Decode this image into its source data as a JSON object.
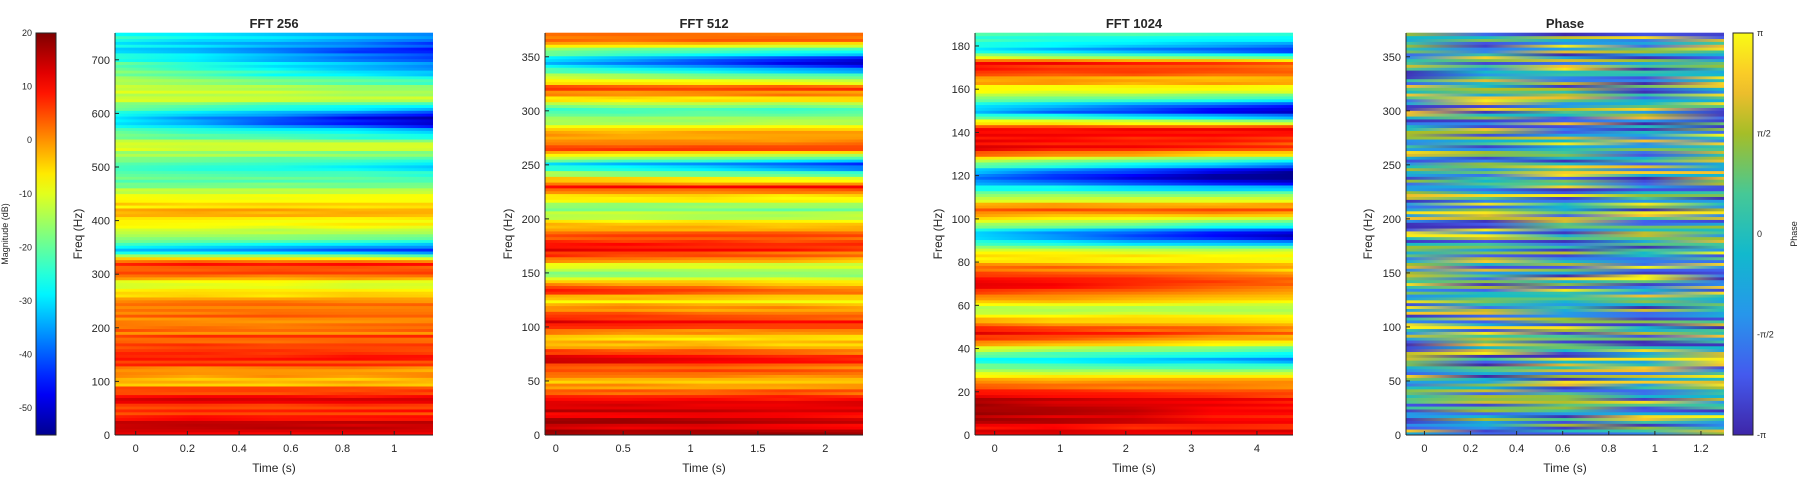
{
  "chart_data": [
    {
      "type": "heatmap",
      "title": "FFT 256",
      "xlabel": "Time (s)",
      "ylabel": "Freq (Hz)",
      "xlim": [
        -0.08,
        1.15
      ],
      "ylim": [
        0,
        750
      ],
      "xticks": [
        0,
        0.2,
        0.4,
        0.6,
        0.8,
        1
      ],
      "xtick_labels": [
        "0",
        "0.2",
        "0.4",
        "0.6",
        "0.8",
        "1"
      ],
      "yticks": [
        0,
        100,
        200,
        300,
        400,
        500,
        600,
        700
      ],
      "ytick_labels": [
        "0",
        "100",
        "200",
        "300",
        "400",
        "500",
        "600",
        "700"
      ],
      "colormap": "jet",
      "clim": [
        -55,
        20
      ],
      "value_bands": [
        {
          "y": 0,
          "v": 14,
          "slope": 0
        },
        {
          "y": 20,
          "v": 13,
          "slope": 0
        },
        {
          "y": 50,
          "v": 5,
          "slope": 0
        },
        {
          "y": 70,
          "v": 12,
          "slope": 0
        },
        {
          "y": 100,
          "v": -4,
          "slope": 0
        },
        {
          "y": 140,
          "v": 7,
          "slope": 0
        },
        {
          "y": 200,
          "v": 3,
          "slope": 0
        },
        {
          "y": 250,
          "v": 1,
          "slope": 0
        },
        {
          "y": 280,
          "v": -13,
          "slope": 0
        },
        {
          "y": 300,
          "v": 2,
          "slope": 0
        },
        {
          "y": 320,
          "v": 7,
          "slope": 0
        },
        {
          "y": 345,
          "v": -30,
          "slope": -6
        },
        {
          "y": 380,
          "v": -10,
          "slope": 0
        },
        {
          "y": 420,
          "v": -3,
          "slope": 0
        },
        {
          "y": 470,
          "v": -18,
          "slope": 0
        },
        {
          "y": 500,
          "v": -25,
          "slope": -4
        },
        {
          "y": 540,
          "v": -9,
          "slope": 0
        },
        {
          "y": 590,
          "v": -32,
          "slope": -12
        },
        {
          "y": 630,
          "v": -10,
          "slope": 0
        },
        {
          "y": 680,
          "v": -18,
          "slope": -8
        },
        {
          "y": 720,
          "v": -28,
          "slope": -8
        },
        {
          "y": 750,
          "v": -25,
          "slope": -5
        }
      ]
    },
    {
      "type": "heatmap",
      "title": "FFT 512",
      "xlabel": "Time (s)",
      "ylabel": "Freq (Hz)",
      "xlim": [
        -0.08,
        2.28
      ],
      "ylim": [
        0,
        372
      ],
      "xticks": [
        0,
        0.5,
        1,
        1.5,
        2
      ],
      "xtick_labels": [
        "0",
        "0.5",
        "1",
        "1.5",
        "2"
      ],
      "yticks": [
        0,
        50,
        100,
        150,
        200,
        250,
        300,
        350
      ],
      "ytick_labels": [
        "0",
        "50",
        "100",
        "150",
        "200",
        "250",
        "300",
        "350"
      ],
      "colormap": "jet",
      "clim": [
        -55,
        20
      ],
      "value_bands": [
        {
          "y": 0,
          "v": 15,
          "slope": 0
        },
        {
          "y": 10,
          "v": 17,
          "slope": -2
        },
        {
          "y": 30,
          "v": 11,
          "slope": 0
        },
        {
          "y": 50,
          "v": -5,
          "slope": 0
        },
        {
          "y": 70,
          "v": 13,
          "slope": -3
        },
        {
          "y": 90,
          "v": -6,
          "slope": 0
        },
        {
          "y": 105,
          "v": 12,
          "slope": -2
        },
        {
          "y": 125,
          "v": -8,
          "slope": 0
        },
        {
          "y": 135,
          "v": 12,
          "slope": -4
        },
        {
          "y": 150,
          "v": -20,
          "slope": 0
        },
        {
          "y": 170,
          "v": 12,
          "slope": -3
        },
        {
          "y": 185,
          "v": 3,
          "slope": 0
        },
        {
          "y": 210,
          "v": -18,
          "slope": 0
        },
        {
          "y": 230,
          "v": 8,
          "slope": 0
        },
        {
          "y": 250,
          "v": -30,
          "slope": -8
        },
        {
          "y": 265,
          "v": 8,
          "slope": 0
        },
        {
          "y": 280,
          "v": -4,
          "slope": 0
        },
        {
          "y": 300,
          "v": -24,
          "slope": 0
        },
        {
          "y": 320,
          "v": 7,
          "slope": 0
        },
        {
          "y": 345,
          "v": -35,
          "slope": -10
        },
        {
          "y": 365,
          "v": 0,
          "slope": 0
        }
      ]
    },
    {
      "type": "heatmap",
      "title": "FFT 1024",
      "xlabel": "Time (s)",
      "ylabel": "Freq (Hz)",
      "xlim": [
        -0.3,
        4.55
      ],
      "ylim": [
        0,
        186
      ],
      "xticks": [
        0,
        1,
        2,
        3,
        4
      ],
      "xtick_labels": [
        "0",
        "1",
        "2",
        "3",
        "4"
      ],
      "yticks": [
        0,
        20,
        40,
        60,
        80,
        100,
        120,
        140,
        160,
        180
      ],
      "ytick_labels": [
        "0",
        "20",
        "40",
        "60",
        "80",
        "100",
        "120",
        "140",
        "160",
        "180"
      ],
      "colormap": "jet",
      "clim": [
        -55,
        20
      ],
      "value_bands": [
        {
          "y": 0,
          "v": 10,
          "slope": 0
        },
        {
          "y": 8,
          "v": 16,
          "slope": -4
        },
        {
          "y": 18,
          "v": 14,
          "slope": -3
        },
        {
          "y": 28,
          "v": -8,
          "slope": 0
        },
        {
          "y": 35,
          "v": -28,
          "slope": -5
        },
        {
          "y": 47,
          "v": 13,
          "slope": -4
        },
        {
          "y": 58,
          "v": -15,
          "slope": 0
        },
        {
          "y": 70,
          "v": 14,
          "slope": -5
        },
        {
          "y": 85,
          "v": -10,
          "slope": 0
        },
        {
          "y": 92,
          "v": -35,
          "slope": -10
        },
        {
          "y": 104,
          "v": 6,
          "slope": 0
        },
        {
          "y": 112,
          "v": -20,
          "slope": 0
        },
        {
          "y": 120,
          "v": -40,
          "slope": -12
        },
        {
          "y": 132,
          "v": 12,
          "slope": -4
        },
        {
          "y": 142,
          "v": 9,
          "slope": 0
        },
        {
          "y": 150,
          "v": -35,
          "slope": -10
        },
        {
          "y": 160,
          "v": -8,
          "slope": 0
        },
        {
          "y": 172,
          "v": 12,
          "slope": -3
        },
        {
          "y": 178,
          "v": -30,
          "slope": -8
        },
        {
          "y": 186,
          "v": -20,
          "slope": 0
        }
      ]
    },
    {
      "type": "heatmap",
      "title": "Phase",
      "xlabel": "Time (s)",
      "ylabel": "Freq (Hz)",
      "xlim": [
        -0.08,
        1.3
      ],
      "ylim": [
        0,
        372
      ],
      "xticks": [
        0,
        0.2,
        0.4,
        0.6,
        0.8,
        1,
        1.2
      ],
      "xtick_labels": [
        "0",
        "0.2",
        "0.4",
        "0.6",
        "0.8",
        "1",
        "1.2"
      ],
      "yticks": [
        0,
        50,
        100,
        150,
        200,
        250,
        300,
        350
      ],
      "ytick_labels": [
        "0",
        "50",
        "100",
        "150",
        "200",
        "250",
        "300",
        "350"
      ],
      "colormap": "parula",
      "clim": [
        -3.1416,
        3.1416
      ]
    }
  ],
  "colorbars": [
    {
      "label": "Magnitude (dB)",
      "colormap": "jet",
      "range": [
        -55,
        20
      ],
      "ticks": [
        20,
        10,
        0,
        -10,
        -20,
        -30,
        -40,
        -50
      ],
      "tick_labels": [
        "20",
        "10",
        "0",
        "-10",
        "-20",
        "-30",
        "-40",
        "-50"
      ]
    },
    {
      "label": "Phase",
      "colormap": "parula",
      "range": [
        -3.1416,
        3.1416
      ],
      "ticks": [
        3.1416,
        1.5708,
        0,
        -1.5708,
        -3.1416
      ],
      "tick_labels": [
        "π",
        "π/2",
        "0",
        "-π/2",
        "-π"
      ]
    }
  ]
}
